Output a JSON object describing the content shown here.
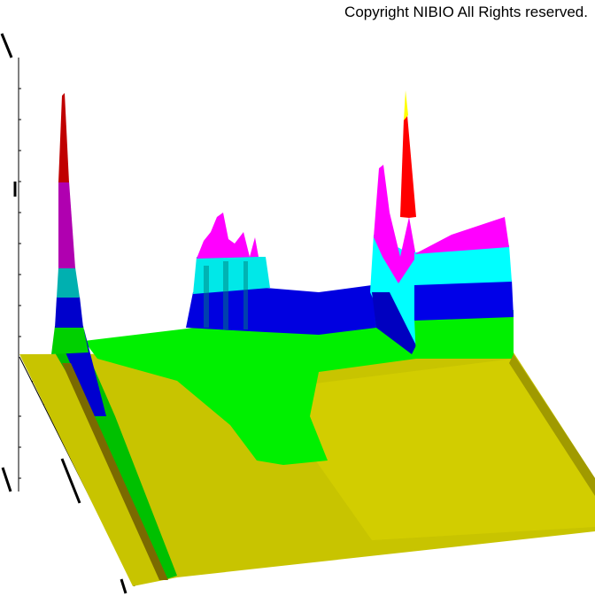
{
  "copyright": "Copyright NIBIO All Rights reserved.",
  "chart_data": {
    "type": "surface",
    "title": "",
    "color_bands": [
      "#c8c800",
      "#00e000",
      "#00c000",
      "#0000e0",
      "#00ffff",
      "#00b0b0",
      "#ff00ff",
      "#b000b0",
      "#e00000",
      "#ffff00"
    ],
    "grid": false
  }
}
